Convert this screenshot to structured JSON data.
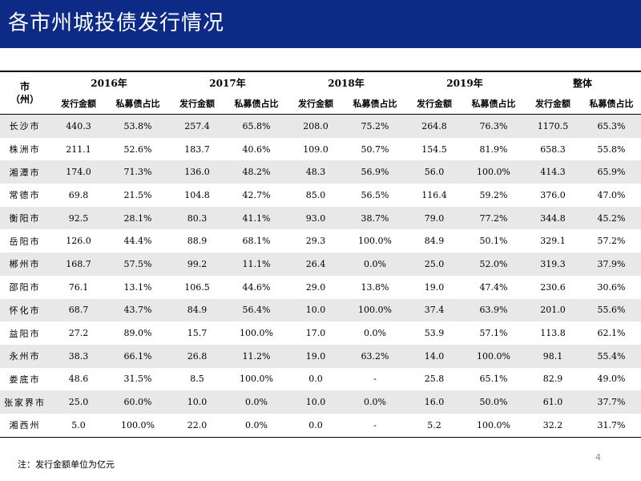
{
  "title": "各市州城投债发行情况",
  "table": {
    "city_header": [
      "市",
      "（州）"
    ],
    "years": [
      "2016年",
      "2017年",
      "2018年",
      "2019年",
      "整体"
    ],
    "sub_headers": [
      "发行金额",
      "私募债占比"
    ],
    "rows": [
      {
        "city": "长沙市",
        "cells": [
          "440.3",
          "53.8%",
          "257.4",
          "65.8%",
          "208.0",
          "75.2%",
          "264.8",
          "76.3%",
          "1170.5",
          "65.3%"
        ]
      },
      {
        "city": "株洲市",
        "cells": [
          "211.1",
          "52.6%",
          "183.7",
          "40.6%",
          "109.0",
          "50.7%",
          "154.5",
          "81.9%",
          "658.3",
          "55.8%"
        ]
      },
      {
        "city": "湘潭市",
        "cells": [
          "174.0",
          "71.3%",
          "136.0",
          "48.2%",
          "48.3",
          "56.9%",
          "56.0",
          "100.0%",
          "414.3",
          "65.9%"
        ]
      },
      {
        "city": "常德市",
        "cells": [
          "69.8",
          "21.5%",
          "104.8",
          "42.7%",
          "85.0",
          "56.5%",
          "116.4",
          "59.2%",
          "376.0",
          "47.0%"
        ]
      },
      {
        "city": "衡阳市",
        "cells": [
          "92.5",
          "28.1%",
          "80.3",
          "41.1%",
          "93.0",
          "38.7%",
          "79.0",
          "77.2%",
          "344.8",
          "45.2%"
        ]
      },
      {
        "city": "岳阳市",
        "cells": [
          "126.0",
          "44.4%",
          "88.9",
          "68.1%",
          "29.3",
          "100.0%",
          "84.9",
          "50.1%",
          "329.1",
          "57.2%"
        ]
      },
      {
        "city": "郴州市",
        "cells": [
          "168.7",
          "57.5%",
          "99.2",
          "11.1%",
          "26.4",
          "0.0%",
          "25.0",
          "52.0%",
          "319.3",
          "37.9%"
        ]
      },
      {
        "city": "邵阳市",
        "cells": [
          "76.1",
          "13.1%",
          "106.5",
          "44.6%",
          "29.0",
          "13.8%",
          "19.0",
          "47.4%",
          "230.6",
          "30.6%"
        ]
      },
      {
        "city": "怀化市",
        "cells": [
          "68.7",
          "43.7%",
          "84.9",
          "56.4%",
          "10.0",
          "100.0%",
          "37.4",
          "63.9%",
          "201.0",
          "55.6%"
        ]
      },
      {
        "city": "益阳市",
        "cells": [
          "27.2",
          "89.0%",
          "15.7",
          "100.0%",
          "17.0",
          "0.0%",
          "53.9",
          "57.1%",
          "113.8",
          "62.1%"
        ]
      },
      {
        "city": "永州市",
        "cells": [
          "38.3",
          "66.1%",
          "26.8",
          "11.2%",
          "19.0",
          "63.2%",
          "14.0",
          "100.0%",
          "98.1",
          "55.4%"
        ]
      },
      {
        "city": "娄底市",
        "cells": [
          "48.6",
          "31.5%",
          "8.5",
          "100.0%",
          "0.0",
          "-",
          "25.8",
          "65.1%",
          "82.9",
          "49.0%"
        ]
      },
      {
        "city": "张家界市",
        "cells": [
          "25.0",
          "60.0%",
          "10.0",
          "0.0%",
          "10.0",
          "0.0%",
          "16.0",
          "50.0%",
          "61.0",
          "37.7%"
        ]
      },
      {
        "city": "湘西州",
        "cells": [
          "5.0",
          "100.0%",
          "22.0",
          "0.0%",
          "0.0",
          "-",
          "5.2",
          "100.0%",
          "32.2",
          "31.7%"
        ]
      }
    ]
  },
  "note": "注：发行金额单位为亿元",
  "page_number": "4"
}
